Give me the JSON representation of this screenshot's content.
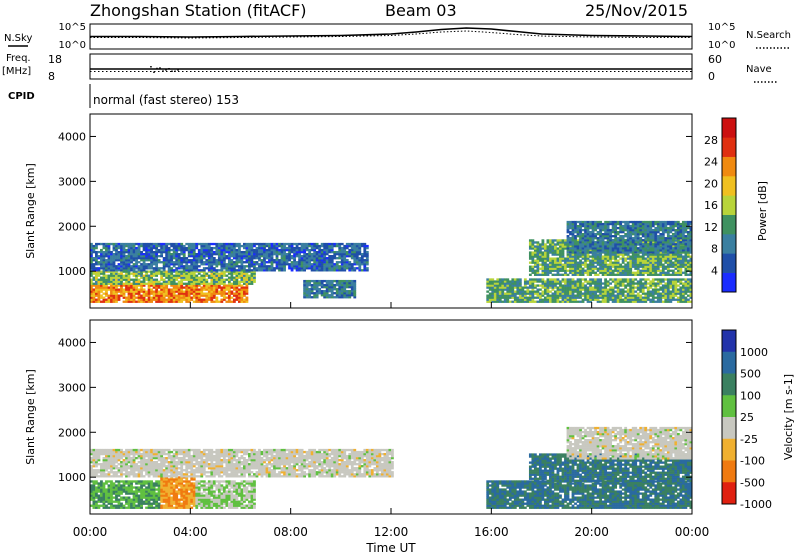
{
  "header": {
    "station": "Zhongshan Station (fitACF)",
    "beam": "Beam 03",
    "date": "25/Nov/2015"
  },
  "noise_panel": {
    "left_label": "N.Sky",
    "left_ticks": [
      "10^5",
      "10^0"
    ],
    "right_ticks": [
      "10^5",
      "10^0"
    ],
    "right_label": "N.Search"
  },
  "freq_panel": {
    "left_label_top": "Freq.",
    "left_label_unit": "[MHz]",
    "left_ticks": [
      "18",
      "8"
    ],
    "right_ticks": [
      "60",
      "0"
    ],
    "right_label": "Nave"
  },
  "cpid": {
    "label": "CPID",
    "text": "normal (fast stereo) 153"
  },
  "x_axis": {
    "ticks": [
      "00:00",
      "04:00",
      "08:00",
      "12:00",
      "16:00",
      "20:00",
      "00:00"
    ],
    "label": "Time UT"
  },
  "range_axis": {
    "label": "Slant Range [km]",
    "ticks": [
      "1000",
      "2000",
      "3000",
      "4000"
    ]
  },
  "power_scale": {
    "title": "Power [dB]",
    "ticks": [
      "4",
      "8",
      "12",
      "16",
      "20",
      "24",
      "28"
    ],
    "colors": [
      "#1a2cff",
      "#1f4fa8",
      "#3a7fa0",
      "#3f9160",
      "#b8d43a",
      "#f0c020",
      "#f08a10",
      "#e03010",
      "#cc1010"
    ]
  },
  "velocity_scale": {
    "title": "Velocity [m s-1]",
    "ticks": [
      "1000",
      "500",
      "100",
      "25",
      "-25",
      "-100",
      "-500",
      "-1000"
    ],
    "colors": [
      "#2233aa",
      "#2a6aa0",
      "#3a8060",
      "#60c040",
      "#c8c8c0",
      "#f0b030",
      "#f07a10",
      "#e02010"
    ]
  },
  "chart_data": [
    {
      "type": "line",
      "title": "N.Sky / N.Search",
      "x_hours": [
        0,
        2,
        4,
        6,
        8,
        10,
        12,
        13,
        14,
        15,
        16,
        17,
        18,
        20,
        22,
        24
      ],
      "series": [
        {
          "values": [
            2.5,
            2.5,
            2.4,
            2.5,
            2.6,
            2.7,
            3.0,
            3.4,
            3.9,
            4.2,
            4.0,
            3.5,
            3.0,
            2.7,
            2.6,
            2.5
          ]
        },
        {
          "values": [
            2.3,
            2.3,
            2.2,
            2.3,
            2.4,
            2.5,
            2.7,
            3.0,
            3.4,
            3.6,
            3.3,
            2.9,
            2.6,
            2.4,
            2.3,
            2.3
          ]
        }
      ],
      "ylim": [
        0,
        5
      ]
    },
    {
      "type": "scatter",
      "title": "Freq / Nave",
      "freq_mhz": 11,
      "nave": 24,
      "dip_hours": [
        2.4,
        3.6
      ]
    },
    {
      "type": "heatmap",
      "title": "Power [dB]",
      "xlim": [
        0,
        24
      ],
      "ylim_km": [
        180,
        4500
      ],
      "regions": [
        {
          "t0": 0.0,
          "t1": 6.2,
          "r0": 300,
          "r1": 700,
          "level": 24
        },
        {
          "t0": 0.0,
          "t1": 6.5,
          "r0": 700,
          "r1": 1000,
          "level": 14
        },
        {
          "t0": 0.0,
          "t1": 11.0,
          "r0": 1000,
          "r1": 1600,
          "level": 6
        },
        {
          "t0": 8.5,
          "t1": 10.5,
          "r0": 400,
          "r1": 800,
          "level": 8
        },
        {
          "t0": 15.8,
          "t1": 24.0,
          "r0": 300,
          "r1": 800,
          "level": 12
        },
        {
          "t0": 17.5,
          "t1": 24.0,
          "r0": 900,
          "r1": 1700,
          "level": 12
        },
        {
          "t0": 19.0,
          "t1": 24.0,
          "r0": 1400,
          "r1": 2100,
          "level": 8
        }
      ]
    },
    {
      "type": "heatmap",
      "title": "Velocity [m s-1]",
      "xlim": [
        0,
        24
      ],
      "ylim_km": [
        180,
        4500
      ],
      "regions": [
        {
          "t0": 0.0,
          "t1": 2.8,
          "r0": 300,
          "r1": 900,
          "level": 100
        },
        {
          "t0": 2.8,
          "t1": 4.2,
          "r0": 300,
          "r1": 1000,
          "level": -100
        },
        {
          "t0": 4.2,
          "t1": 6.5,
          "r0": 300,
          "r1": 900,
          "level": 25
        },
        {
          "t0": 0.0,
          "t1": 12.0,
          "r0": 1000,
          "r1": 1600,
          "level": 0
        },
        {
          "t0": 15.8,
          "t1": 24.0,
          "r0": 300,
          "r1": 900,
          "level": 500
        },
        {
          "t0": 17.5,
          "t1": 24.0,
          "r0": 900,
          "r1": 1500,
          "level": 500
        },
        {
          "t0": 19.0,
          "t1": 24.0,
          "r0": 1400,
          "r1": 2100,
          "level": 0
        }
      ]
    }
  ]
}
